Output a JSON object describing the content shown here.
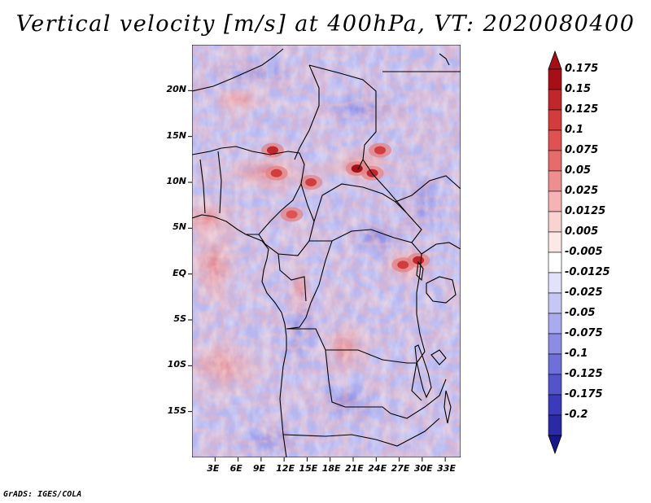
{
  "title": "Vertical velocity [m/s] at 400hPa, VT: 2020080400",
  "footer": "GrADS: IGES/COLA",
  "map": {
    "lon_range": [
      0,
      35
    ],
    "lat_range": [
      -20,
      25
    ],
    "lat_ticks": [
      {
        "value": 20,
        "label": "20N"
      },
      {
        "value": 15,
        "label": "15N"
      },
      {
        "value": 10,
        "label": "10N"
      },
      {
        "value": 5,
        "label": "5N"
      },
      {
        "value": 0,
        "label": "EQ"
      },
      {
        "value": -5,
        "label": "5S"
      },
      {
        "value": -10,
        "label": "10S"
      },
      {
        "value": -15,
        "label": "15S"
      }
    ],
    "lon_ticks": [
      {
        "value": 3,
        "label": "3E"
      },
      {
        "value": 6,
        "label": "6E"
      },
      {
        "value": 9,
        "label": "9E"
      },
      {
        "value": 12,
        "label": "12E"
      },
      {
        "value": 15,
        "label": "15E"
      },
      {
        "value": 18,
        "label": "18E"
      },
      {
        "value": 21,
        "label": "21E"
      },
      {
        "value": 24,
        "label": "24E"
      },
      {
        "value": 27,
        "label": "27E"
      },
      {
        "value": 30,
        "label": "30E"
      },
      {
        "value": 33,
        "label": "33E"
      }
    ],
    "strong_updrafts": [
      {
        "lon": 10.5,
        "lat": 13.5,
        "value": 0.15
      },
      {
        "lon": 11,
        "lat": 11,
        "value": 0.125
      },
      {
        "lon": 15.5,
        "lat": 10,
        "value": 0.125
      },
      {
        "lon": 21.5,
        "lat": 11.5,
        "value": 0.175
      },
      {
        "lon": 23.5,
        "lat": 11,
        "value": 0.15
      },
      {
        "lon": 24.5,
        "lat": 13.5,
        "value": 0.125
      },
      {
        "lon": 13,
        "lat": 6.5,
        "value": 0.1
      },
      {
        "lon": 27.5,
        "lat": 1,
        "value": 0.125
      },
      {
        "lon": 29.5,
        "lat": 1.5,
        "value": 0.15
      }
    ]
  },
  "colorbar": {
    "levels": [
      {
        "label": "0.175",
        "color": "#a50f15"
      },
      {
        "label": "0.15",
        "color": "#c0262c"
      },
      {
        "label": "0.125",
        "color": "#d23c3c"
      },
      {
        "label": "0.1",
        "color": "#e05252"
      },
      {
        "label": "0.075",
        "color": "#e66b6b"
      },
      {
        "label": "0.05",
        "color": "#ee8f8f"
      },
      {
        "label": "0.025",
        "color": "#f5b3b3"
      },
      {
        "label": "0.0125",
        "color": "#f9d2d2"
      },
      {
        "label": "0.005",
        "color": "#fde8e8"
      },
      {
        "label": "-0.005",
        "color": "#ffffff"
      },
      {
        "label": "-0.0125",
        "color": "#e2e2fb"
      },
      {
        "label": "-0.025",
        "color": "#c7c7f5"
      },
      {
        "label": "-0.05",
        "color": "#aaaaee"
      },
      {
        "label": "-0.075",
        "color": "#8c8ce4"
      },
      {
        "label": "-0.1",
        "color": "#6f6fd9"
      },
      {
        "label": "-0.125",
        "color": "#5353cc"
      },
      {
        "label": "-0.175",
        "color": "#3a3abb"
      },
      {
        "label": "-0.2",
        "color": "#2a2aa5"
      }
    ],
    "top_color": "#a50f15",
    "bottom_color": "#17178a"
  }
}
